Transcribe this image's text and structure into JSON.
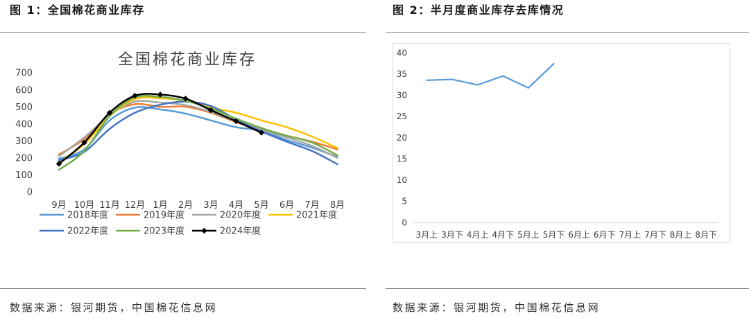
{
  "figures": [
    {
      "caption": "图 1：全国棉花商业库存",
      "source": "数据来源：银河期货，中国棉花信息网"
    },
    {
      "caption": "图 2：半月度商业库存去库情况",
      "source": "数据来源：银河期货，中国棉花信息网"
    }
  ],
  "chart_data": [
    {
      "type": "line",
      "title": "全国棉花商业库存",
      "categories": [
        "9月",
        "10月",
        "11月",
        "12月",
        "1月",
        "2月",
        "3月",
        "4月",
        "5月",
        "6月",
        "7月",
        "8月"
      ],
      "yticks": [
        0,
        100,
        200,
        300,
        400,
        500,
        600,
        700
      ],
      "ylim": [
        0,
        700
      ],
      "grid": false,
      "legend": "bottom",
      "series": [
        {
          "name": "2018年度",
          "color": "#5B9BD5",
          "values": [
            195,
            250,
            420,
            495,
            485,
            460,
            420,
            380,
            360,
            305,
            260,
            205
          ]
        },
        {
          "name": "2019年度",
          "color": "#ED7D31",
          "values": [
            220,
            310,
            455,
            515,
            500,
            500,
            465,
            410,
            365,
            330,
            295,
            250
          ]
        },
        {
          "name": "2020年度",
          "color": "#A5A5A5",
          "values": [
            210,
            320,
            450,
            530,
            525,
            510,
            470,
            415,
            365,
            320,
            270,
            200
          ]
        },
        {
          "name": "2021年度",
          "color": "#FFC000",
          "values": [
            175,
            280,
            445,
            545,
            550,
            535,
            495,
            465,
            420,
            380,
            325,
            258
          ]
        },
        {
          "name": "2022年度",
          "color": "#4472C4",
          "values": [
            185,
            235,
            370,
            465,
            512,
            530,
            505,
            425,
            355,
            295,
            240,
            163
          ]
        },
        {
          "name": "2023年度",
          "color": "#70AD47",
          "values": [
            130,
            240,
            445,
            555,
            558,
            535,
            490,
            430,
            375,
            330,
            290,
            215
          ]
        },
        {
          "name": "2024年度",
          "color": "#000000",
          "markers": true,
          "values": [
            165,
            290,
            465,
            565,
            572,
            548,
            480,
            415,
            348,
            null,
            null,
            null
          ]
        }
      ]
    },
    {
      "type": "line",
      "categories": [
        "3月上",
        "3月下",
        "4月上",
        "4月下",
        "5月上",
        "5月下",
        "6月上",
        "6月下",
        "7月上",
        "7月下",
        "8月上",
        "8月下"
      ],
      "yticks": [
        0,
        5,
        10,
        15,
        20,
        25,
        30,
        35,
        40
      ],
      "ylim": [
        0,
        40
      ],
      "grid": false,
      "series": [
        {
          "color": "#5B9BD5",
          "values": [
            33.5,
            33.7,
            32.4,
            34.5,
            31.7,
            37.4,
            null,
            null,
            null,
            null,
            null,
            null
          ]
        }
      ]
    }
  ]
}
